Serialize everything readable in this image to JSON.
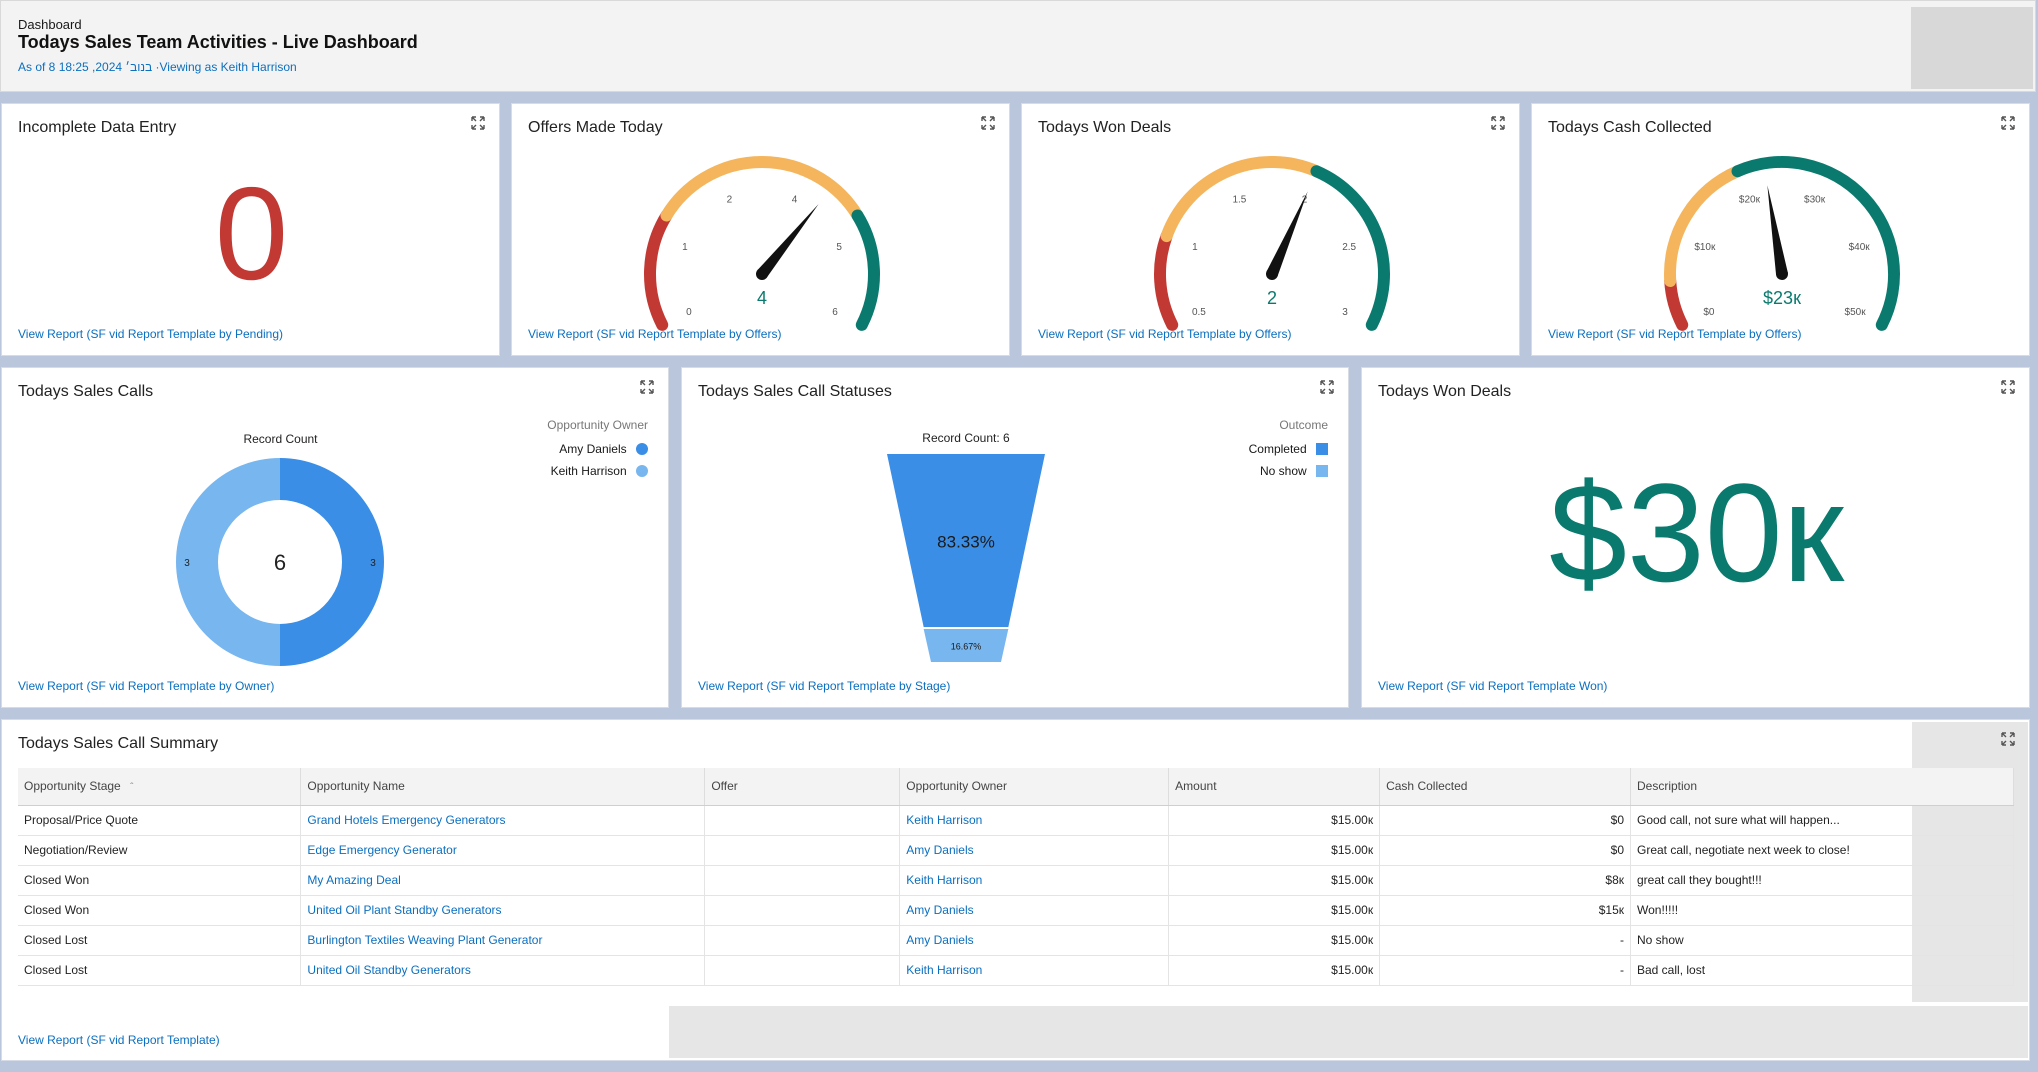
{
  "header": {
    "breadcrumb": "Dashboard",
    "title": "Todays Sales Team Activities - Live Dashboard",
    "as_of": "As of 8 18:25 ,2024 בנוב׳ ·Viewing as Keith Harrison"
  },
  "cards": {
    "incomplete": {
      "title": "Incomplete Data Entry",
      "value": "0",
      "report": "View Report (SF vid Report Template by Pending)"
    },
    "offers": {
      "title": "Offers Made Today",
      "report": "View Report (SF vid Report Template by Offers)",
      "gauge": {
        "min": 0,
        "max": 6,
        "value": 4,
        "value_label": "4",
        "ticks": [
          "0",
          "1",
          "2",
          "4",
          "5",
          "6"
        ],
        "bands": [
          {
            "to": 1.5,
            "color": "#c23934"
          },
          {
            "to": 4.5,
            "color": "#f4b55d"
          },
          {
            "to": 6,
            "color": "#0b7a6e"
          }
        ]
      }
    },
    "won_gauge": {
      "title": "Todays Won Deals",
      "report": "View Report (SF vid Report Template by Offers)",
      "gauge": {
        "min": 0.5,
        "max": 3,
        "value": 2,
        "value_label": "2",
        "ticks": [
          "0.5",
          "1",
          "1.5",
          "2",
          "2.5",
          "3"
        ],
        "bands": [
          {
            "to": 1.0,
            "color": "#c23934"
          },
          {
            "to": 2.0,
            "color": "#f4b55d"
          },
          {
            "to": 3,
            "color": "#0b7a6e"
          }
        ]
      }
    },
    "cash": {
      "title": "Todays Cash Collected",
      "report": "View Report (SF vid Report Template by Offers)",
      "gauge": {
        "min": 0,
        "max": 50,
        "value": 23,
        "value_label": "$23к",
        "ticks": [
          "$0",
          "$10к",
          "$20к",
          "$30к",
          "$40к",
          "$50к"
        ],
        "bands": [
          {
            "to": 5,
            "color": "#c23934"
          },
          {
            "to": 20,
            "color": "#f4b55d"
          },
          {
            "to": 50,
            "color": "#0b7a6e"
          }
        ]
      }
    },
    "calls": {
      "title": "Todays Sales Calls",
      "report": "View Report (SF vid Report Template by Owner)",
      "chart_label": "Record Count",
      "center": "6",
      "legend_title": "Opportunity Owner"
    },
    "statuses": {
      "title": "Todays Sales Call Statuses",
      "report": "View Report (SF vid Report Template by Stage)",
      "chart_label": "Record Count: 6",
      "legend_title": "Outcome"
    },
    "won_big": {
      "title": "Todays Won Deals",
      "value": "$30к",
      "report": "View Report (SF vid Report Template Won)"
    },
    "summary": {
      "title": "Todays Sales Call Summary",
      "report": "View Report (SF vid Report Template)"
    }
  },
  "chart_data": [
    {
      "type": "pie",
      "title": "Record Count",
      "legend_title": "Opportunity Owner",
      "series": [
        {
          "name": "Amy Daniels",
          "value": 3,
          "label": "3",
          "color": "#3a8ee6"
        },
        {
          "name": "Keith Harrison",
          "value": 3,
          "label": "3",
          "color": "#78b6ef"
        }
      ],
      "total": 6
    },
    {
      "type": "bar",
      "title": "Record Count: 6",
      "legend_title": "Outcome",
      "categories": [
        "Completed",
        "No show"
      ],
      "values": [
        83.33,
        16.67
      ],
      "labels": [
        "83.33%",
        "16.67%"
      ],
      "colors": [
        "#3a8ee6",
        "#78b6ef"
      ]
    }
  ],
  "table": {
    "columns": [
      "Opportunity Stage",
      "Opportunity Name",
      "Offer",
      "Opportunity Owner",
      "Amount",
      "Cash Collected",
      "Description"
    ],
    "sort_indicator": "ˆ",
    "rows": [
      [
        "Proposal/Price Quote",
        "Grand Hotels Emergency Generators",
        "",
        "Keith Harrison",
        "$15.00к",
        "$0",
        "Good call, not sure what will happen..."
      ],
      [
        "Negotiation/Review",
        "Edge Emergency Generator",
        "",
        "Amy Daniels",
        "$15.00к",
        "$0",
        "Great call, negotiate next week to close!"
      ],
      [
        "Closed Won",
        "My Amazing Deal",
        "",
        "Keith Harrison",
        "$15.00к",
        "$8к",
        "great call they bought!!!"
      ],
      [
        "Closed Won",
        "United Oil Plant Standby Generators",
        "",
        "Amy Daniels",
        "$15.00к",
        "$15к",
        "Won!!!!!"
      ],
      [
        "Closed Lost",
        "Burlington Textiles Weaving Plant Generator",
        "",
        "Amy Daniels",
        "$15.00к",
        "-",
        "No show"
      ],
      [
        "Closed Lost",
        "United Oil Standby Generators",
        "",
        "Keith Harrison",
        "$15.00к",
        "-",
        "Bad call, lost"
      ]
    ]
  },
  "colors": {
    "accent": "#0b6fbf",
    "teal": "#0b7a6e",
    "red": "#c23934",
    "amber": "#f4b55d"
  },
  "icons": {
    "expand": "expand-icon"
  }
}
